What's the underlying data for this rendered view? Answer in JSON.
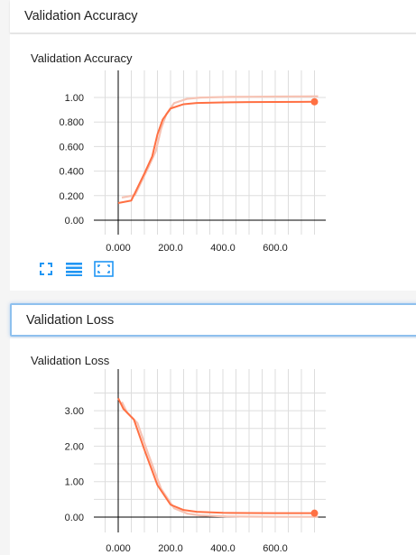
{
  "sections": {
    "accuracy": {
      "header": "Validation Accuracy",
      "card_title": "Validation Accuracy"
    },
    "loss": {
      "header": "Validation Loss",
      "card_title": "Validation Loss"
    }
  },
  "toolbar": {
    "icons": [
      "fullscreen-icon",
      "toggle-log-scale-icon",
      "fit-domain-icon"
    ],
    "accent": "#2196f3"
  },
  "colors": {
    "series": "#ff7043",
    "series_raw": "#f6c3b4",
    "axis": "#000000",
    "grid": "#dddddd"
  },
  "chart_data": [
    {
      "type": "line",
      "title": "Validation Accuracy",
      "xlabel": "",
      "ylabel": "",
      "x_ticks": [
        "0.000",
        "200.0",
        "400.0",
        "600.0"
      ],
      "y_ticks": [
        "0.00",
        "0.200",
        "0.400",
        "0.600",
        "0.800",
        "1.00"
      ],
      "xlim": [
        -100,
        800
      ],
      "ylim": [
        -0.05,
        1.1
      ],
      "grid": true,
      "series": [
        {
          "smoothed": true,
          "x": [
            0,
            50,
            100,
            130,
            150,
            170,
            200,
            250,
            300,
            400,
            500,
            600,
            700,
            750
          ],
          "y": [
            0.14,
            0.16,
            0.38,
            0.52,
            0.7,
            0.82,
            0.91,
            0.945,
            0.955,
            0.96,
            0.962,
            0.963,
            0.964,
            0.965
          ]
        }
      ]
    },
    {
      "type": "line",
      "title": "Validation Loss",
      "xlabel": "",
      "ylabel": "",
      "x_ticks": [
        "0.000",
        "200.0",
        "400.0",
        "600.0"
      ],
      "y_ticks": [
        "0.00",
        "1.00",
        "2.00",
        "3.00"
      ],
      "xlim": [
        -100,
        800
      ],
      "ylim": [
        -0.15,
        3.7
      ],
      "grid": true,
      "series": [
        {
          "smoothed": true,
          "x": [
            0,
            20,
            60,
            100,
            150,
            200,
            250,
            300,
            400,
            500,
            600,
            700,
            750
          ],
          "y": [
            3.35,
            3.05,
            2.75,
            1.9,
            0.9,
            0.35,
            0.2,
            0.15,
            0.12,
            0.115,
            0.11,
            0.11,
            0.11
          ]
        }
      ]
    }
  ]
}
